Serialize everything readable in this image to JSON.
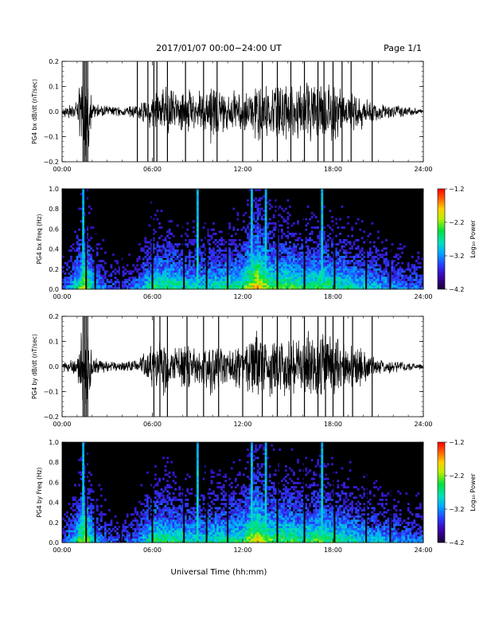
{
  "header": {
    "date_range": "2017/01/07  00:00−24:00 UT",
    "page": "Page 1/1"
  },
  "x_axis": {
    "label": "Universal Time (hh:mm)",
    "range_hours": [
      0,
      24
    ],
    "tick_hours": [
      0,
      6,
      12,
      18,
      24
    ],
    "tick_labels": [
      "00:00",
      "06:00",
      "12:00",
      "18:00",
      "24:00"
    ]
  },
  "colors": {
    "waveform": "#000000",
    "spectrogram_background": "#000000",
    "colormap": [
      "#1a0033",
      "#3b00a8",
      "#2a3cff",
      "#00a8ff",
      "#00e0c0",
      "#00e040",
      "#b8f000",
      "#ffd000",
      "#ff6000",
      "#ff0000"
    ]
  },
  "chart_data": [
    {
      "type": "line",
      "name": "bx_waveform",
      "ylabel": "PG4 bx dB/dt (nT/sec)",
      "ylim": [
        -0.2,
        0.2
      ],
      "yticks": [
        -0.2,
        -0.1,
        0.0,
        0.1,
        0.2
      ],
      "ytick_labels": [
        "−0.2",
        "−0.1",
        "0.0",
        "0.1",
        "0.2"
      ],
      "envelope": {
        "x_hours": [
          0,
          1,
          1.3,
          1.5,
          1.7,
          2,
          3,
          4,
          5,
          5.5,
          6,
          6.5,
          7,
          7.5,
          8,
          8.5,
          9,
          9.5,
          10,
          10.5,
          11,
          11.5,
          12,
          12.5,
          13,
          13.5,
          14,
          14.5,
          15,
          15.5,
          16,
          16.5,
          17,
          17.5,
          18,
          18.5,
          19,
          19.5,
          20,
          20.5,
          21,
          22,
          23,
          24
        ],
        "amplitude": [
          0.02,
          0.04,
          0.2,
          0.2,
          0.2,
          0.04,
          0.025,
          0.02,
          0.03,
          0.05,
          0.08,
          0.1,
          0.12,
          0.08,
          0.12,
          0.09,
          0.08,
          0.1,
          0.14,
          0.09,
          0.08,
          0.1,
          0.07,
          0.12,
          0.15,
          0.11,
          0.13,
          0.14,
          0.13,
          0.11,
          0.12,
          0.14,
          0.13,
          0.14,
          0.15,
          0.11,
          0.09,
          0.09,
          0.08,
          0.06,
          0.04,
          0.03,
          0.02,
          0.01
        ]
      },
      "spikes_hours": [
        1.4,
        1.5,
        1.6,
        1.7,
        5.0,
        5.7,
        6.1,
        6.3,
        7.0,
        8.2,
        9.4,
        10.3,
        12.0,
        13.3,
        14.3,
        15.2,
        16.1,
        17.0,
        17.4,
        18.0,
        18.6,
        19.2,
        20.6
      ]
    },
    {
      "type": "heatmap",
      "name": "bx_spectrogram",
      "ylabel": "PG4 bx Freq (Hz)",
      "ylim": [
        0.0,
        1.0
      ],
      "yticks": [
        0.0,
        0.2,
        0.4,
        0.6,
        0.8,
        1.0
      ],
      "ytick_labels": [
        "0.0",
        "0.2",
        "0.4",
        "0.6",
        "0.8",
        "1.0"
      ],
      "colorbar": {
        "label": "Log₁₀ Power",
        "range": [
          -4.2,
          -1.2
        ],
        "ticks": [
          -1.2,
          -2.2,
          -3.2,
          -4.2
        ],
        "tick_labels": [
          "−1.2",
          "−2.2",
          "−3.2",
          "−4.2"
        ]
      },
      "intensity_profile": {
        "x_hours": [
          0,
          1,
          1.5,
          2,
          3,
          4,
          5,
          6,
          7,
          8,
          9,
          10,
          11,
          12,
          12.5,
          13,
          13.5,
          14,
          15,
          16,
          17,
          18,
          19,
          20,
          21,
          22,
          23,
          24
        ],
        "level": [
          0.2,
          0.5,
          0.75,
          0.45,
          0.25,
          0.2,
          0.3,
          0.55,
          0.55,
          0.5,
          0.45,
          0.5,
          0.5,
          0.55,
          0.75,
          0.85,
          0.7,
          0.6,
          0.6,
          0.55,
          0.6,
          0.55,
          0.5,
          0.45,
          0.4,
          0.35,
          0.3,
          0.3
        ]
      },
      "bright_columns_hours": [
        1.45,
        9.0,
        12.6,
        13.5,
        17.3
      ],
      "gap_columns_hours": [
        1.6,
        2.2,
        3.9,
        6.0,
        8.1,
        9.6,
        11.0,
        14.3,
        16.1,
        18.1,
        20.2,
        21.8
      ]
    },
    {
      "type": "line",
      "name": "by_waveform",
      "ylabel": "PG4 by dB/dt (nT/sec)",
      "ylim": [
        -0.2,
        0.2
      ],
      "yticks": [
        -0.2,
        -0.1,
        0.0,
        0.1,
        0.2
      ],
      "ytick_labels": [
        "−0.2",
        "−0.1",
        "0.0",
        "0.1",
        "0.2"
      ],
      "envelope": {
        "x_hours": [
          0,
          1,
          1.3,
          1.5,
          1.7,
          2,
          3,
          4,
          5,
          5.5,
          6,
          6.5,
          7,
          7.5,
          8,
          8.5,
          9,
          9.5,
          10,
          10.5,
          11,
          11.5,
          12,
          12.5,
          13,
          13.5,
          14,
          14.5,
          15,
          15.5,
          16,
          16.5,
          17,
          17.5,
          18,
          18.5,
          19,
          19.5,
          20,
          20.5,
          21,
          22,
          23,
          24
        ],
        "amplitude": [
          0.02,
          0.04,
          0.2,
          0.2,
          0.2,
          0.04,
          0.025,
          0.02,
          0.03,
          0.06,
          0.09,
          0.12,
          0.13,
          0.09,
          0.13,
          0.1,
          0.09,
          0.11,
          0.14,
          0.1,
          0.09,
          0.11,
          0.08,
          0.13,
          0.16,
          0.12,
          0.14,
          0.15,
          0.14,
          0.12,
          0.13,
          0.15,
          0.14,
          0.15,
          0.16,
          0.12,
          0.1,
          0.1,
          0.08,
          0.06,
          0.04,
          0.03,
          0.02,
          0.01
        ]
      },
      "spikes_hours": [
        1.4,
        1.5,
        1.6,
        1.7,
        6.1,
        6.5,
        7.0,
        8.3,
        9.4,
        10.4,
        12.0,
        13.3,
        14.3,
        15.2,
        16.1,
        17.0,
        17.5,
        18.0,
        18.7,
        19.3,
        20.6
      ]
    },
    {
      "type": "heatmap",
      "name": "by_spectrogram",
      "ylabel": "PG4 by Freq (Hz)",
      "ylim": [
        0.0,
        1.0
      ],
      "yticks": [
        0.0,
        0.2,
        0.4,
        0.6,
        0.8,
        1.0
      ],
      "ytick_labels": [
        "0.0",
        "0.2",
        "0.4",
        "0.6",
        "0.8",
        "1.0"
      ],
      "colorbar": {
        "label": "Log₁₀ Power",
        "range": [
          -4.2,
          -1.2
        ],
        "ticks": [
          -1.2,
          -2.2,
          -3.2,
          -4.2
        ],
        "tick_labels": [
          "−1.2",
          "−2.2",
          "−3.2",
          "−4.2"
        ]
      },
      "intensity_profile": {
        "x_hours": [
          0,
          1,
          1.5,
          2,
          3,
          4,
          5,
          6,
          7,
          8,
          9,
          10,
          11,
          12,
          12.5,
          13,
          13.5,
          14,
          15,
          16,
          17,
          18,
          19,
          20,
          21,
          22,
          23,
          24
        ],
        "level": [
          0.2,
          0.5,
          0.75,
          0.45,
          0.25,
          0.2,
          0.3,
          0.55,
          0.55,
          0.5,
          0.45,
          0.5,
          0.5,
          0.55,
          0.7,
          0.8,
          0.65,
          0.6,
          0.6,
          0.55,
          0.6,
          0.55,
          0.5,
          0.45,
          0.4,
          0.35,
          0.3,
          0.3
        ]
      },
      "bright_columns_hours": [
        1.45,
        9.0,
        12.6,
        13.5,
        17.3
      ],
      "gap_columns_hours": [
        1.6,
        2.2,
        3.9,
        6.0,
        8.1,
        9.6,
        11.0,
        14.3,
        16.1,
        18.1,
        20.2,
        21.8
      ]
    }
  ]
}
